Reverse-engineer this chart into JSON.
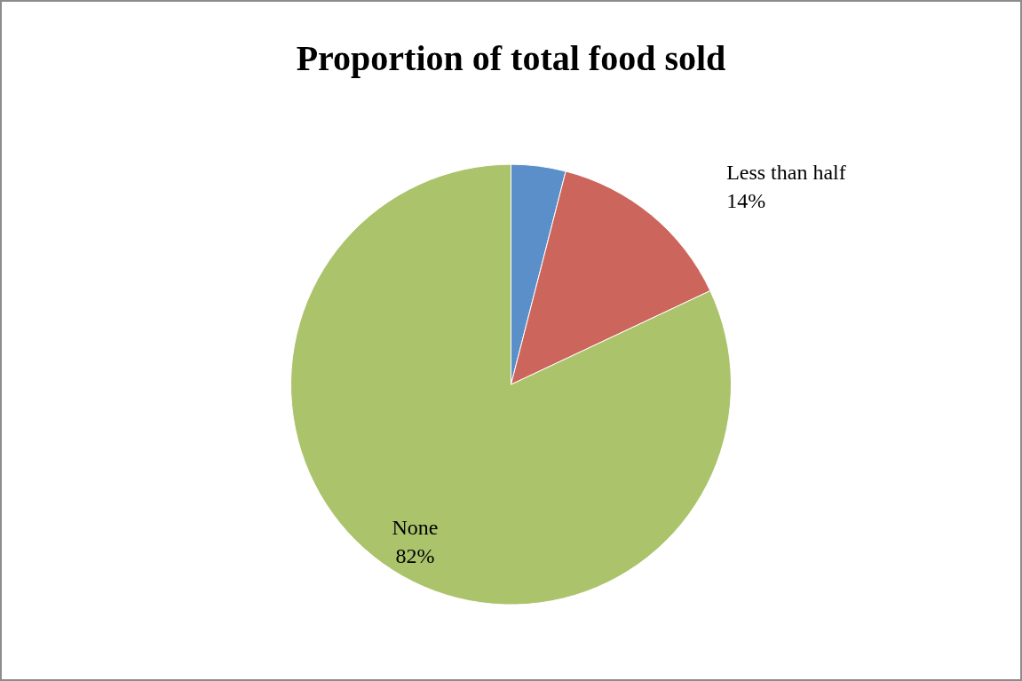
{
  "chart_data": {
    "type": "pie",
    "title": "Proportion of total food sold",
    "categories": [
      null,
      "Less than half",
      "None"
    ],
    "values": [
      4,
      14,
      82
    ],
    "colors": [
      "#5b8fc9",
      "#cc665c",
      "#abc36b"
    ],
    "value_labels": [
      null,
      "14%",
      "82%"
    ],
    "legend": false
  }
}
